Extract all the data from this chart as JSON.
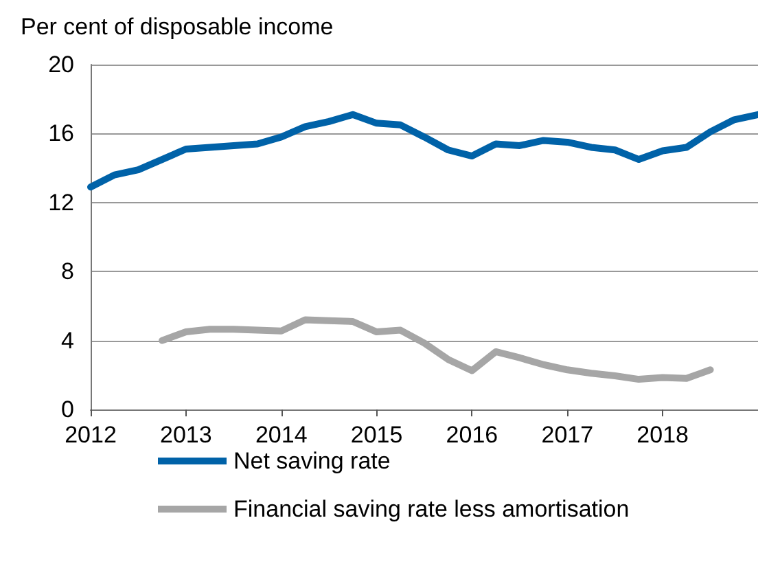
{
  "chart_data": {
    "type": "line",
    "ylabel": "Per cent of disposable income",
    "series": [
      {
        "name": "Net saving rate",
        "color": "#0062a8",
        "x": [
          2012,
          2012.25,
          2012.5,
          2012.75,
          2013,
          2013.25,
          2013.5,
          2013.75,
          2014,
          2014.25,
          2014.5,
          2014.75,
          2015,
          2015.25,
          2015.5,
          2015.75,
          2016,
          2016.25,
          2016.5,
          2016.75,
          2017,
          2017.25,
          2017.5,
          2017.75,
          2018,
          2018.25,
          2018.5,
          2018.75,
          2019
        ],
        "values": [
          12.9,
          13.6,
          13.9,
          14.5,
          15.1,
          15.2,
          15.3,
          15.4,
          15.8,
          16.4,
          16.7,
          17.1,
          16.6,
          16.5,
          15.8,
          15.05,
          14.7,
          15.4,
          15.3,
          15.6,
          15.5,
          15.2,
          15.05,
          14.5,
          15.0,
          15.2,
          16.1,
          16.8,
          17.1
        ]
      },
      {
        "name": "Financial saving rate less amortisation",
        "color": "#a6a6a6",
        "x": [
          2012.75,
          2013,
          2013.25,
          2013.5,
          2013.75,
          2014,
          2014.25,
          2014.5,
          2014.75,
          2015,
          2015.25,
          2015.5,
          2015.75,
          2016,
          2016.25,
          2016.5,
          2016.75,
          2017,
          2017.25,
          2017.5,
          2017.75,
          2018,
          2018.25,
          2018.5
        ],
        "values": [
          4.0,
          4.5,
          4.65,
          4.65,
          4.6,
          4.55,
          5.2,
          5.15,
          5.1,
          4.5,
          4.6,
          3.85,
          2.9,
          2.25,
          3.35,
          3.0,
          2.6,
          2.3,
          2.1,
          1.95,
          1.75,
          1.85,
          1.8,
          2.3
        ]
      }
    ],
    "xlim": [
      2012,
      2019
    ],
    "xticks": [
      2012,
      2013,
      2014,
      2015,
      2016,
      2017,
      2018
    ],
    "ylim": [
      0,
      20
    ],
    "yticks": [
      0,
      4,
      8,
      12,
      16,
      20
    ],
    "grid": "y",
    "legend": "bottom",
    "marker": "none",
    "line_style": "solid"
  }
}
